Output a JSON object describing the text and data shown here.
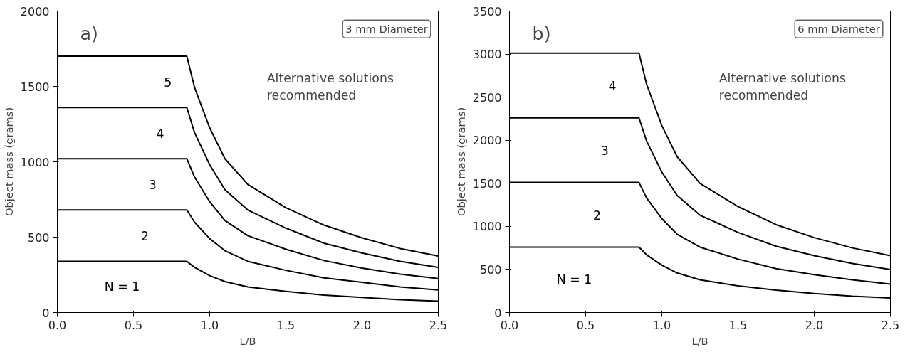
{
  "chart_data": [
    {
      "type": "line",
      "title": "a)",
      "xlabel": "L/B",
      "ylabel": "Object mass (grams)",
      "x": [
        0,
        0.85,
        0.9,
        1.0,
        1.1,
        1.25,
        1.5,
        1.75,
        2.0,
        2.25,
        2.5
      ],
      "series": [
        {
          "name": "N = 1",
          "color": "#000000",
          "values": [
            340,
            340,
            300,
            245,
            205,
            170,
            140,
            115,
            100,
            85,
            75
          ]
        },
        {
          "name": "2",
          "color": "#000000",
          "values": [
            680,
            680,
            600,
            490,
            410,
            340,
            280,
            230,
            200,
            170,
            150
          ]
        },
        {
          "name": "3",
          "color": "#000000",
          "values": [
            1020,
            1020,
            900,
            735,
            610,
            510,
            420,
            345,
            295,
            255,
            225
          ]
        },
        {
          "name": "4",
          "color": "#000000",
          "values": [
            1360,
            1360,
            1195,
            980,
            815,
            680,
            560,
            460,
            395,
            340,
            300
          ]
        },
        {
          "name": "5",
          "color": "#000000",
          "values": [
            1700,
            1700,
            1495,
            1225,
            1020,
            850,
            695,
            580,
            495,
            425,
            375
          ]
        }
      ],
      "xlim": [
        0,
        2.5
      ],
      "ylim": [
        0,
        2000
      ],
      "xticks": [
        {
          "value": 0,
          "label": "0.0"
        },
        0.5,
        {
          "value": 1,
          "label": "1.0"
        },
        1.5,
        {
          "value": 2,
          "label": "2.0"
        },
        2.5
      ],
      "yticks": [
        0,
        500,
        1000,
        1500,
        2000
      ],
      "grid": false,
      "marker": "none",
      "line_style": "solid",
      "annotations": [
        "Alternative solutions\nrecommended",
        "3 mm Diameter"
      ]
    },
    {
      "type": "line",
      "title": "b)",
      "xlabel": "L/B",
      "ylabel": "Object mass (grams)",
      "x": [
        0,
        0.85,
        0.9,
        1.0,
        1.1,
        1.25,
        1.5,
        1.75,
        2.0,
        2.25,
        2.5
      ],
      "series": [
        {
          "name": "N = 1",
          "color": "#000000",
          "values": [
            760,
            760,
            670,
            550,
            460,
            380,
            310,
            260,
            220,
            190,
            170
          ]
        },
        {
          "name": "2",
          "color": "#000000",
          "values": [
            1510,
            1510,
            1330,
            1090,
            910,
            760,
            620,
            510,
            440,
            380,
            330
          ]
        },
        {
          "name": "3",
          "color": "#000000",
          "values": [
            2260,
            2260,
            1990,
            1630,
            1360,
            1130,
            930,
            770,
            660,
            570,
            500
          ]
        },
        {
          "name": "4",
          "color": "#000000",
          "values": [
            3010,
            3010,
            2650,
            2170,
            1810,
            1500,
            1230,
            1020,
            870,
            750,
            660
          ]
        }
      ],
      "xlim": [
        0,
        2.5
      ],
      "ylim": [
        0,
        3500
      ],
      "xticks": [
        {
          "value": 0,
          "label": "0.0"
        },
        0.5,
        {
          "value": 1,
          "label": "1.0"
        },
        1.5,
        {
          "value": 2,
          "label": "2.0"
        },
        2.5
      ],
      "yticks": [
        0,
        500,
        1000,
        1500,
        2000,
        2500,
        3000,
        3500
      ],
      "grid": false,
      "marker": "none",
      "line_style": "solid",
      "annotations": [
        "Alternative solutions\nrecommended",
        "6 mm Diameter"
      ]
    }
  ]
}
